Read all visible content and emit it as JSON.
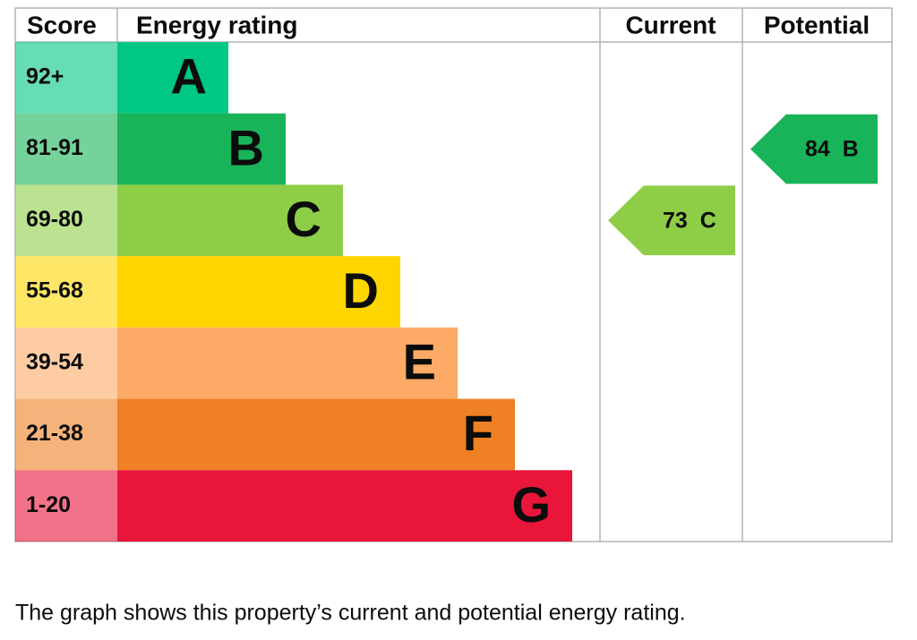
{
  "header": {
    "score": "Score",
    "rating": "Energy rating",
    "current": "Current",
    "potential": "Potential"
  },
  "bands": [
    {
      "score": "92+",
      "letter": "A",
      "color": "#00c781"
    },
    {
      "score": "81-91",
      "letter": "B",
      "color": "#19b459"
    },
    {
      "score": "69-80",
      "letter": "C",
      "color": "#8dce46"
    },
    {
      "score": "55-68",
      "letter": "D",
      "color": "#ffd500"
    },
    {
      "score": "39-54",
      "letter": "E",
      "color": "#fcaa65"
    },
    {
      "score": "21-38",
      "letter": "F",
      "color": "#ef8023"
    },
    {
      "score": "1-20",
      "letter": "G",
      "color": "#e9153b"
    }
  ],
  "current": {
    "score": 73,
    "letter": "C"
  },
  "potential": {
    "score": 84,
    "letter": "B"
  },
  "caption": "The graph shows this property’s current and potential energy rating."
}
